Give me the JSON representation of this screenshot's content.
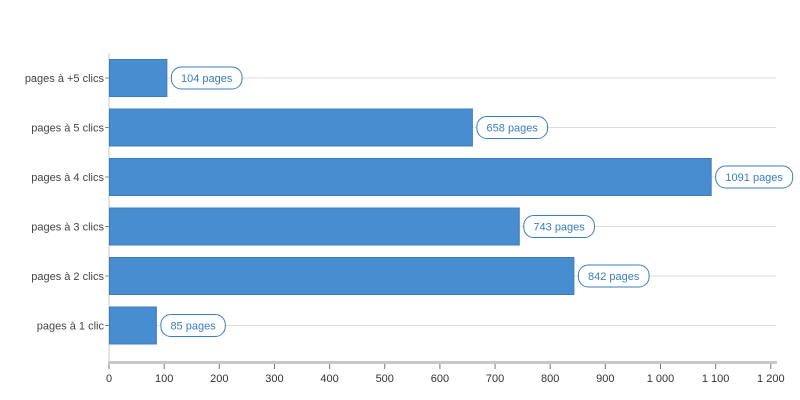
{
  "chart_data": {
    "type": "bar",
    "orientation": "horizontal",
    "title": "",
    "xlabel": "",
    "ylabel": "",
    "categories": [
      "pages à +5 clics",
      "pages à 5 clics",
      "pages à 4 clics",
      "pages à 3 clics",
      "pages à 2 clics",
      "pages à 1 clic"
    ],
    "values": [
      104,
      658,
      1091,
      743,
      842,
      85
    ],
    "data_labels": [
      "104 pages",
      "658 pages",
      "1091 pages",
      "743 pages",
      "842 pages",
      "85 pages"
    ],
    "xlim": [
      0,
      1210
    ],
    "x_ticks": [
      0,
      100,
      200,
      300,
      400,
      500,
      600,
      700,
      800,
      900,
      1000,
      1100,
      1200
    ],
    "x_tick_labels": [
      "0",
      "100",
      "200",
      "300",
      "400",
      "500",
      "600",
      "700",
      "800",
      "900",
      "1 000",
      "1 100",
      "1 200"
    ],
    "grid": true,
    "legend": "none",
    "colors": {
      "bar": "#488dcf",
      "bar_border": "#3d7cbb",
      "label_text": "#3b7dc2",
      "label_border": "#3b7dc2",
      "grid": "#dddddd",
      "axis": "#c8c8c8"
    }
  }
}
